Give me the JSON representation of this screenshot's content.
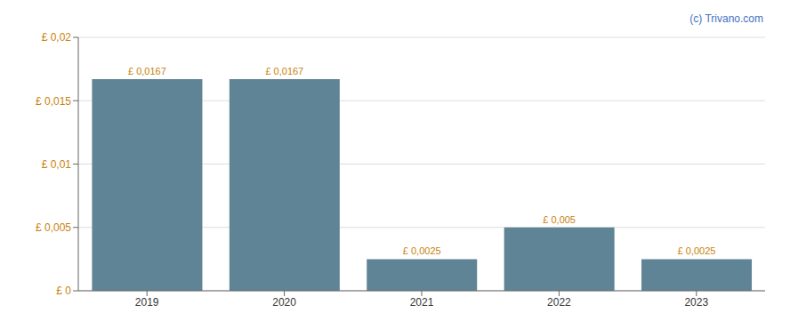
{
  "chart_data": {
    "type": "bar",
    "categories": [
      "2019",
      "2020",
      "2021",
      "2022",
      "2023"
    ],
    "values": [
      0.0167,
      0.0167,
      0.0025,
      0.005,
      0.0025
    ],
    "value_labels": [
      "£ 0,0167",
      "£ 0,0167",
      "£ 0,0025",
      "£ 0,005",
      "£ 0,0025"
    ],
    "data_labels": true,
    "color": "#5f8496",
    "ylim": [
      0,
      0.02
    ],
    "yticks": [
      {
        "value": 0,
        "label": "£ 0"
      },
      {
        "value": 0.005,
        "label": "£ 0,005"
      },
      {
        "value": 0.01,
        "label": "£ 0,01"
      },
      {
        "value": 0.015,
        "label": "£ 0,015"
      },
      {
        "value": 0.02,
        "label": "£ 0,02"
      }
    ],
    "grid": true,
    "annotations": [
      "(c) Trivano.com"
    ]
  }
}
